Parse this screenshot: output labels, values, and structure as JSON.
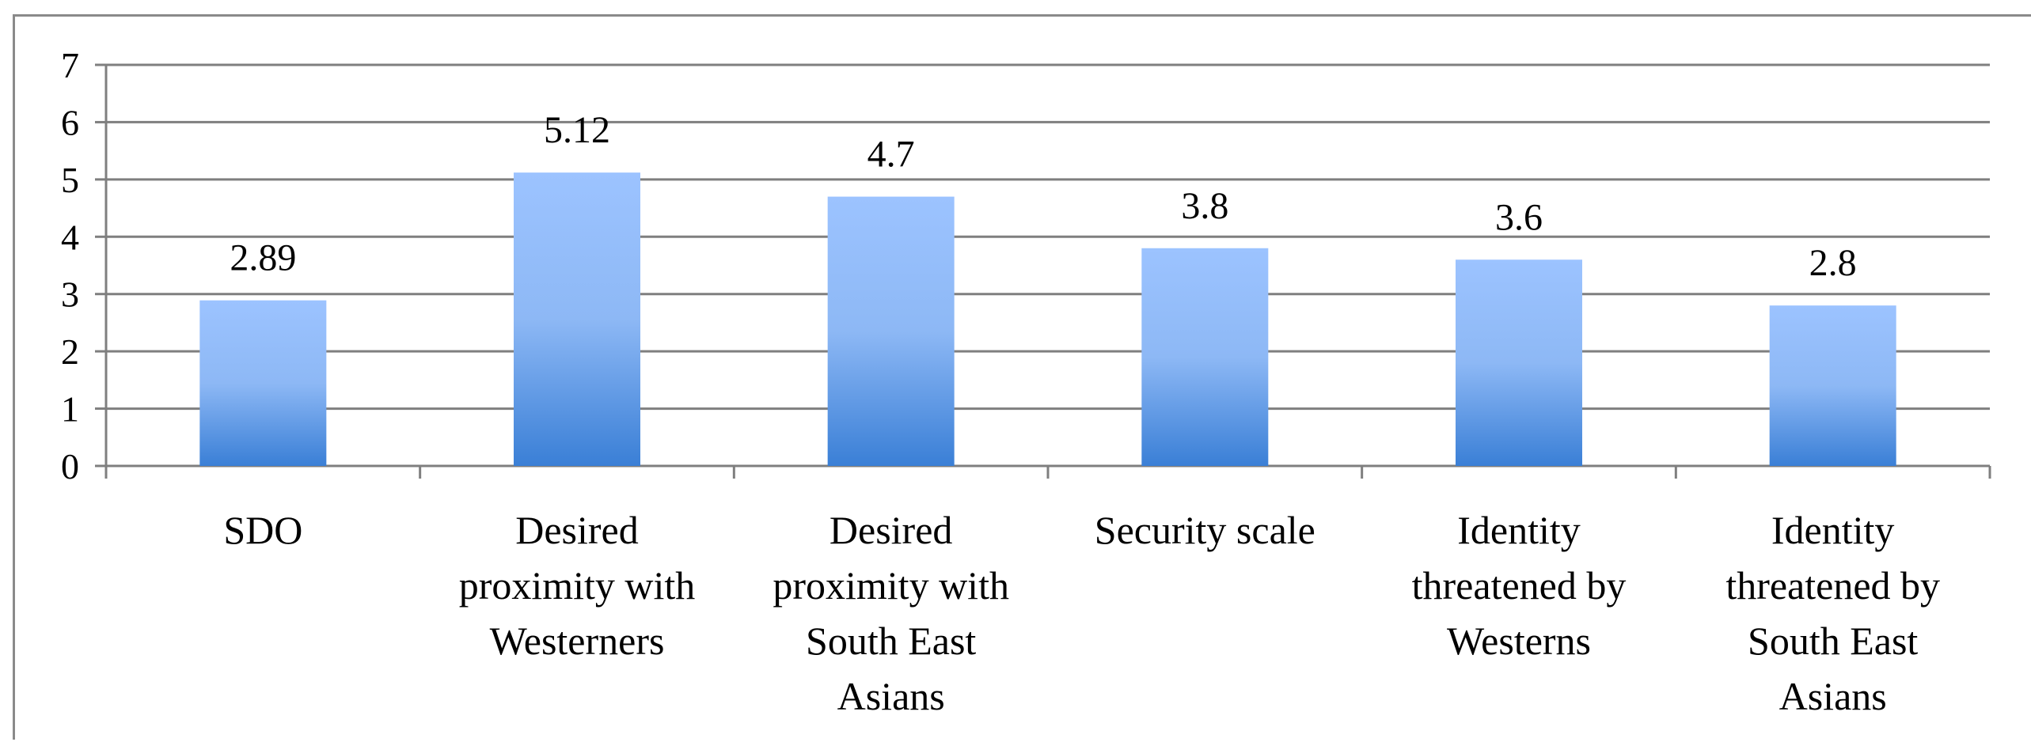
{
  "chart_data": {
    "type": "bar",
    "categories": [
      [
        "SDO"
      ],
      [
        "Desired",
        "proximity with",
        "Westerners"
      ],
      [
        "Desired",
        "proximity with",
        "South East",
        "Asians"
      ],
      [
        "Security scale"
      ],
      [
        "Identity",
        "threatened by",
        "Westerns"
      ],
      [
        "Identity",
        "threatened by",
        "South East",
        "Asians"
      ]
    ],
    "values": [
      2.89,
      5.12,
      4.7,
      3.8,
      3.6,
      2.8
    ],
    "data_labels": [
      "2.89",
      "5.12",
      "4.7",
      "3.8",
      "3.6",
      "2.8"
    ],
    "y_ticks": [
      "0",
      "1",
      "2",
      "3",
      "4",
      "5",
      "6",
      "7"
    ],
    "ylim": [
      0,
      7
    ],
    "grid": true,
    "title": "",
    "xlabel": "",
    "ylabel": "",
    "colors": {
      "bar_top": "#9cc3ff",
      "bar_bottom": "#3a7fd6",
      "grid": "#7f7f7f",
      "axis": "#7f7f7f"
    }
  }
}
